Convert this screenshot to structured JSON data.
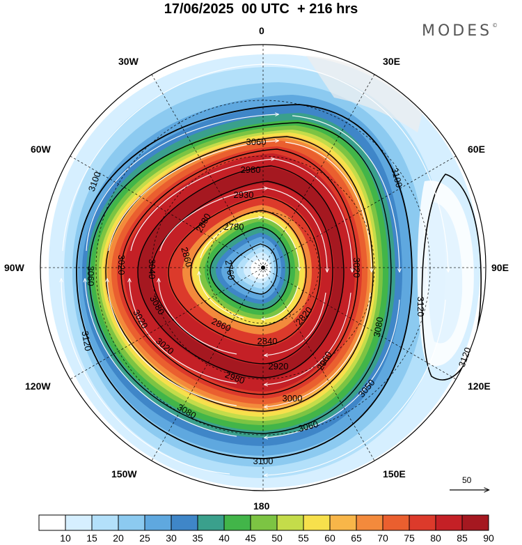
{
  "title": "17/06/2025  00 UTC  + 216 hrs",
  "brand": "MODES",
  "brand_mark": "©",
  "longitude_labels": {
    "n": "0",
    "s": "180",
    "e": "90E",
    "w": "90W",
    "e30": "30E",
    "e60": "60E",
    "e120": "120E",
    "e150": "150E",
    "w30": "30W",
    "w60": "60W",
    "w120": "120W",
    "w150": "150W"
  },
  "reference_vector": {
    "label": "50"
  },
  "colorbar": {
    "colors": [
      "#ffffff",
      "#d6efff",
      "#b3e0fa",
      "#8ccaf0",
      "#5fa8df",
      "#3f86c8",
      "#3aa08c",
      "#42b549",
      "#7cc443",
      "#c4dc4a",
      "#f7e04c",
      "#f8b649",
      "#f38a3c",
      "#ea5f2f",
      "#dc3a2b",
      "#c42026",
      "#a51820"
    ],
    "ticks": [
      "10",
      "15",
      "20",
      "25",
      "30",
      "35",
      "40",
      "45",
      "50",
      "55",
      "60",
      "65",
      "70",
      "75",
      "80",
      "85",
      "90"
    ]
  },
  "contour_labels": [
    {
      "text": "3060"
    },
    {
      "text": "2980"
    },
    {
      "text": "2930"
    },
    {
      "text": "2880"
    },
    {
      "text": "2780"
    },
    {
      "text": "2860"
    },
    {
      "text": "2760"
    },
    {
      "text": "3100"
    },
    {
      "text": "3060"
    },
    {
      "text": "3020"
    },
    {
      "text": "3120"
    },
    {
      "text": "3020"
    },
    {
      "text": "3080"
    },
    {
      "text": "3040"
    },
    {
      "text": "2820"
    },
    {
      "text": "2860"
    },
    {
      "text": "2840"
    },
    {
      "text": "2920"
    },
    {
      "text": "3020"
    },
    {
      "text": "2980"
    },
    {
      "text": "3000"
    },
    {
      "text": "3060"
    },
    {
      "text": "3080"
    },
    {
      "text": "3100"
    },
    {
      "text": "3100"
    },
    {
      "text": "3080"
    },
    {
      "text": "3050"
    },
    {
      "text": "3120"
    },
    {
      "text": "3120"
    },
    {
      "text": "3020"
    },
    {
      "text": "2960"
    }
  ]
}
